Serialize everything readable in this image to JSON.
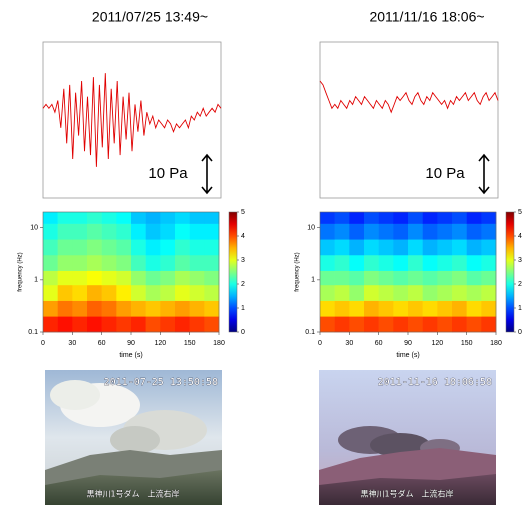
{
  "chart_data": [
    {
      "type": "line",
      "title": "2011/07/25 13:49~",
      "scale_label": "10 Pa",
      "color": "#e00000",
      "x": [
        0,
        3,
        6,
        9,
        12,
        15,
        18,
        21,
        24,
        27,
        30,
        33,
        36,
        39,
        42,
        45,
        48,
        51,
        54,
        57,
        60,
        63,
        66,
        69,
        72,
        75,
        78,
        81,
        84,
        87,
        90,
        93,
        96,
        99,
        102,
        105,
        108,
        111,
        114,
        117,
        120,
        123,
        126,
        129,
        132,
        135,
        138,
        141,
        144,
        147,
        150,
        153,
        156,
        159,
        162,
        165,
        168,
        171,
        174,
        177,
        180
      ],
      "values": [
        3,
        4,
        3,
        4,
        2,
        5,
        -2,
        8,
        -6,
        9,
        -10,
        7,
        -4,
        10,
        -8,
        6,
        -9,
        11,
        -12,
        9,
        -7,
        12,
        -10,
        8,
        -6,
        10,
        -9,
        6,
        -5,
        7,
        -8,
        4,
        -3,
        5,
        -4,
        2,
        -1,
        1,
        -2,
        0,
        -1,
        -2,
        0,
        -1,
        -3,
        -1,
        -2,
        -1,
        0,
        -2,
        1,
        0,
        2,
        1,
        3,
        1,
        2,
        3,
        2,
        4,
        3
      ],
      "xlim": [
        0,
        180
      ],
      "ylim": [
        -20,
        20
      ]
    },
    {
      "type": "heatmap",
      "xlabel": "time (s)",
      "ylabel": "frequency (Hz)",
      "colormap": "jet",
      "ylog": true,
      "x_bins": [
        0,
        15,
        30,
        45,
        60,
        75,
        90,
        105,
        120,
        135,
        150,
        165,
        180
      ],
      "y_bins": [
        0.1,
        0.2,
        0.4,
        0.8,
        1.5,
        3,
        6,
        12,
        20
      ],
      "z": [
        [
          4.2,
          4.3,
          4.2,
          4.3,
          4.2,
          4.1,
          4.2,
          4.0,
          4.1,
          4.2,
          4.1,
          4.0
        ],
        [
          3.6,
          3.8,
          3.7,
          3.9,
          3.8,
          3.6,
          3.5,
          3.4,
          3.5,
          3.6,
          3.5,
          3.4
        ],
        [
          3.0,
          3.4,
          3.3,
          3.5,
          3.4,
          3.2,
          2.9,
          2.7,
          2.8,
          3.0,
          2.9,
          2.8
        ],
        [
          2.8,
          3.0,
          3.0,
          3.1,
          3.0,
          2.9,
          2.6,
          2.4,
          2.5,
          2.7,
          2.6,
          2.5
        ],
        [
          2.4,
          2.6,
          2.6,
          2.7,
          2.6,
          2.5,
          2.2,
          2.0,
          2.1,
          2.3,
          2.2,
          2.2
        ],
        [
          2.2,
          2.4,
          2.4,
          2.5,
          2.4,
          2.3,
          2.0,
          1.8,
          1.9,
          2.1,
          2.0,
          2.0
        ],
        [
          2.0,
          2.2,
          2.2,
          2.3,
          2.2,
          2.1,
          1.8,
          1.6,
          1.7,
          1.9,
          1.8,
          1.8
        ],
        [
          1.8,
          2.0,
          2.0,
          2.1,
          2.0,
          1.9,
          1.6,
          1.5,
          1.6,
          1.7,
          1.6,
          1.6
        ]
      ],
      "xlim": [
        0,
        180
      ],
      "xticks": [
        0,
        30,
        60,
        90,
        120,
        150,
        180
      ],
      "ylim": [
        0.1,
        20
      ],
      "yticks": [
        0.1,
        1,
        10
      ],
      "clim": [
        0,
        5
      ],
      "cticks": [
        0,
        1,
        2,
        3,
        4,
        5
      ]
    },
    {
      "type": "line",
      "title": "2011/11/16 18:06~",
      "scale_label": "10 Pa",
      "color": "#e00000",
      "x": [
        0,
        3,
        6,
        9,
        12,
        15,
        18,
        21,
        24,
        27,
        30,
        33,
        36,
        39,
        42,
        45,
        48,
        51,
        54,
        57,
        60,
        63,
        66,
        69,
        72,
        75,
        78,
        81,
        84,
        87,
        90,
        93,
        96,
        99,
        102,
        105,
        108,
        111,
        114,
        117,
        120,
        123,
        126,
        129,
        132,
        135,
        138,
        141,
        144,
        147,
        150,
        153,
        156,
        159,
        162,
        165,
        168,
        171,
        174,
        177,
        180
      ],
      "values": [
        10,
        9,
        7,
        5,
        3,
        4,
        3,
        5,
        4,
        3,
        5,
        4,
        6,
        5,
        4,
        6,
        5,
        4,
        3,
        5,
        4,
        3,
        5,
        4,
        2,
        4,
        6,
        5,
        6,
        7,
        5,
        4,
        6,
        7,
        5,
        4,
        6,
        5,
        7,
        6,
        5,
        4,
        5,
        3,
        5,
        4,
        6,
        5,
        6,
        7,
        5,
        6,
        7,
        5,
        4,
        6,
        7,
        5,
        6,
        7,
        5
      ],
      "xlim": [
        0,
        180
      ],
      "ylim": [
        -20,
        20
      ]
    },
    {
      "type": "heatmap",
      "xlabel": "time (s)",
      "ylabel": "frequency (Hz)",
      "colormap": "jet",
      "ylog": true,
      "x_bins": [
        0,
        15,
        30,
        45,
        60,
        75,
        90,
        105,
        120,
        135,
        150,
        165,
        180
      ],
      "y_bins": [
        0.1,
        0.2,
        0.4,
        0.8,
        1.5,
        3,
        6,
        12,
        20
      ],
      "z": [
        [
          4.0,
          4.1,
          4.0,
          4.1,
          4.0,
          4.1,
          4.0,
          4.1,
          4.0,
          4.1,
          4.0,
          4.1
        ],
        [
          3.3,
          3.4,
          3.3,
          3.5,
          3.4,
          3.3,
          3.4,
          3.3,
          3.4,
          3.5,
          3.3,
          3.4
        ],
        [
          2.7,
          2.8,
          2.6,
          2.9,
          2.8,
          2.7,
          2.8,
          2.6,
          2.7,
          2.8,
          2.7,
          2.8
        ],
        [
          2.4,
          2.4,
          2.3,
          2.5,
          2.4,
          2.3,
          2.4,
          2.3,
          2.4,
          2.5,
          2.3,
          2.4
        ],
        [
          2.0,
          2.1,
          1.9,
          2.1,
          2.0,
          1.9,
          2.1,
          1.9,
          2.0,
          2.1,
          1.9,
          2.0
        ],
        [
          1.6,
          1.7,
          1.5,
          1.7,
          1.6,
          1.5,
          1.7,
          1.5,
          1.6,
          1.7,
          1.5,
          1.6
        ],
        [
          1.2,
          1.3,
          1.1,
          1.3,
          1.2,
          1.1,
          1.3,
          1.1,
          1.2,
          1.3,
          1.1,
          1.2
        ],
        [
          0.9,
          1.0,
          0.8,
          1.0,
          0.9,
          0.8,
          1.0,
          0.8,
          0.9,
          1.0,
          0.8,
          0.9
        ]
      ],
      "xlim": [
        0,
        180
      ],
      "xticks": [
        0,
        30,
        60,
        90,
        120,
        150,
        180
      ],
      "ylim": [
        0.1,
        20
      ],
      "yticks": [
        0.1,
        1,
        10
      ],
      "clim": [
        0,
        5
      ],
      "cticks": [
        0,
        1,
        2,
        3,
        4,
        5
      ]
    }
  ],
  "photos": [
    {
      "timestamp": "2011-07-25 13:50:58",
      "caption": "黒神川1号ダム　上流右岸"
    },
    {
      "timestamp": "2011-11-16 18:06:58",
      "caption": "黒神川1号ダム　上流右岸"
    }
  ]
}
